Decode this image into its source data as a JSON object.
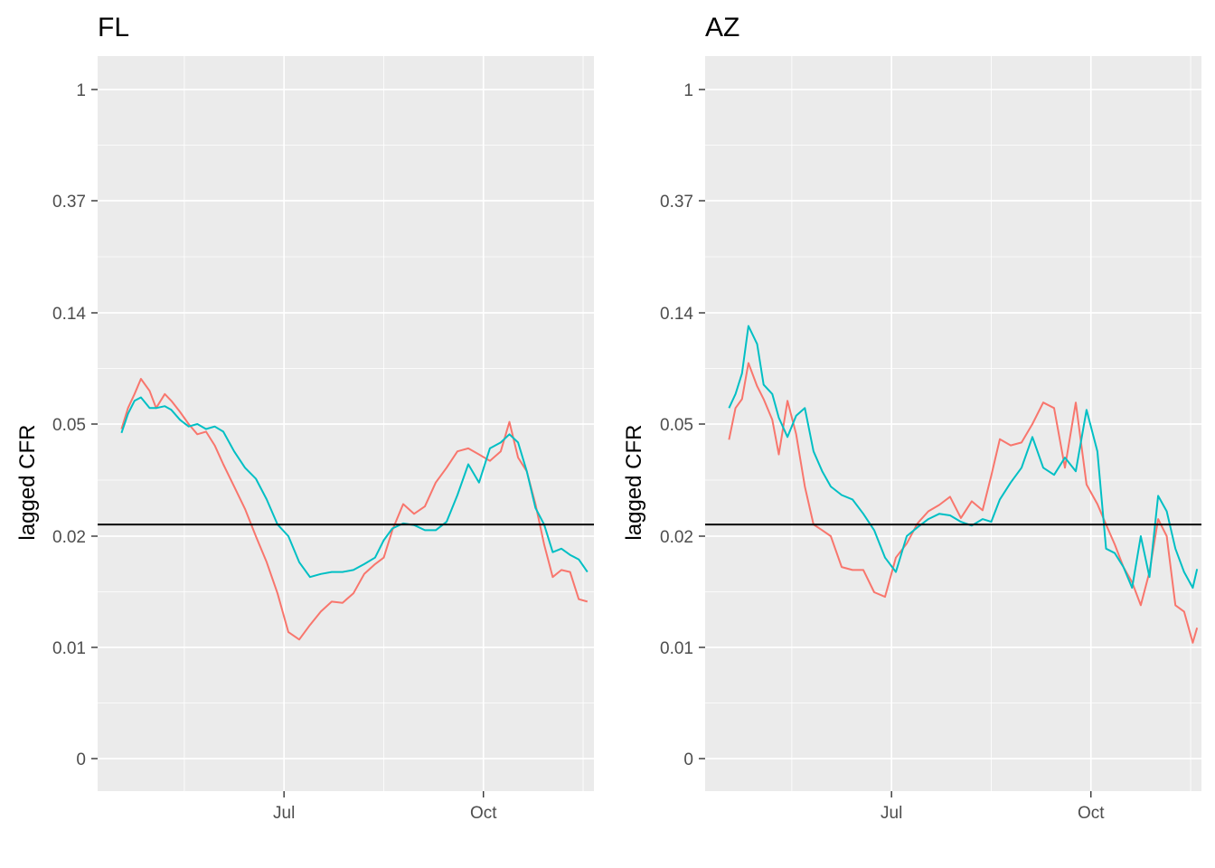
{
  "chart_data": [
    {
      "type": "line",
      "title": "FL",
      "xlabel": "",
      "ylabel": "lagged CFR",
      "y_scale": "log",
      "y_ticks": [
        {
          "value": 0,
          "label": "0"
        },
        {
          "value": 0.01,
          "label": "0.01"
        },
        {
          "value": 0.02,
          "label": "0.02"
        },
        {
          "value": 0.05,
          "label": "0.05"
        },
        {
          "value": 0.14,
          "label": "0.14"
        },
        {
          "value": 0.37,
          "label": "0.37"
        },
        {
          "value": 1,
          "label": "1"
        }
      ],
      "x_ticks": [
        {
          "value": "2020-07-01",
          "label": "Jul"
        },
        {
          "value": "2020-10-01",
          "label": "Oct"
        }
      ],
      "xlim": [
        "2020-04-06",
        "2020-11-21"
      ],
      "hline": 0.022,
      "grid": true,
      "legend": "none",
      "series": [
        {
          "color": "#F8766D",
          "points": [
            [
              "2020-04-17",
              0.048
            ],
            [
              "2020-04-20",
              0.058
            ],
            [
              "2020-04-23",
              0.066
            ],
            [
              "2020-04-26",
              0.076
            ],
            [
              "2020-04-30",
              0.068
            ],
            [
              "2020-05-03",
              0.058
            ],
            [
              "2020-05-07",
              0.066
            ],
            [
              "2020-05-10",
              0.062
            ],
            [
              "2020-05-14",
              0.056
            ],
            [
              "2020-05-18",
              0.05
            ],
            [
              "2020-05-22",
              0.046
            ],
            [
              "2020-05-26",
              0.047
            ],
            [
              "2020-05-30",
              0.042
            ],
            [
              "2020-06-03",
              0.036
            ],
            [
              "2020-06-08",
              0.03
            ],
            [
              "2020-06-13",
              0.025
            ],
            [
              "2020-06-18",
              0.02
            ],
            [
              "2020-06-23",
              0.017
            ],
            [
              "2020-06-28",
              0.014
            ],
            [
              "2020-07-03",
              0.011
            ],
            [
              "2020-07-08",
              0.0105
            ],
            [
              "2020-07-13",
              0.0115
            ],
            [
              "2020-07-18",
              0.0125
            ],
            [
              "2020-07-23",
              0.0133
            ],
            [
              "2020-07-28",
              0.0132
            ],
            [
              "2020-08-02",
              0.014
            ],
            [
              "2020-08-07",
              0.0158
            ],
            [
              "2020-08-12",
              0.0168
            ],
            [
              "2020-08-16",
              0.0175
            ],
            [
              "2020-08-20",
              0.021
            ],
            [
              "2020-08-25",
              0.026
            ],
            [
              "2020-08-30",
              0.024
            ],
            [
              "2020-09-04",
              0.0255
            ],
            [
              "2020-09-09",
              0.031
            ],
            [
              "2020-09-14",
              0.035
            ],
            [
              "2020-09-19",
              0.04
            ],
            [
              "2020-09-24",
              0.041
            ],
            [
              "2020-09-29",
              0.039
            ],
            [
              "2020-10-04",
              0.037
            ],
            [
              "2020-10-09",
              0.04
            ],
            [
              "2020-10-13",
              0.051
            ],
            [
              "2020-10-17",
              0.038
            ],
            [
              "2020-10-21",
              0.034
            ],
            [
              "2020-10-25",
              0.026
            ],
            [
              "2020-10-29",
              0.019
            ],
            [
              "2020-11-02",
              0.0155
            ],
            [
              "2020-11-06",
              0.0162
            ],
            [
              "2020-11-10",
              0.016
            ],
            [
              "2020-11-14",
              0.0135
            ],
            [
              "2020-11-18",
              0.0133
            ]
          ]
        },
        {
          "color": "#00BFC4",
          "points": [
            [
              "2020-04-17",
              0.0465
            ],
            [
              "2020-04-20",
              0.055
            ],
            [
              "2020-04-23",
              0.062
            ],
            [
              "2020-04-26",
              0.064
            ],
            [
              "2020-04-30",
              0.058
            ],
            [
              "2020-05-03",
              0.058
            ],
            [
              "2020-05-07",
              0.059
            ],
            [
              "2020-05-10",
              0.057
            ],
            [
              "2020-05-14",
              0.052
            ],
            [
              "2020-05-18",
              0.049
            ],
            [
              "2020-05-22",
              0.05
            ],
            [
              "2020-05-26",
              0.048
            ],
            [
              "2020-05-30",
              0.049
            ],
            [
              "2020-06-03",
              0.047
            ],
            [
              "2020-06-08",
              0.04
            ],
            [
              "2020-06-13",
              0.035
            ],
            [
              "2020-06-18",
              0.032
            ],
            [
              "2020-06-23",
              0.027
            ],
            [
              "2020-06-28",
              0.022
            ],
            [
              "2020-07-03",
              0.02
            ],
            [
              "2020-07-08",
              0.017
            ],
            [
              "2020-07-13",
              0.0155
            ],
            [
              "2020-07-18",
              0.0158
            ],
            [
              "2020-07-23",
              0.016
            ],
            [
              "2020-07-28",
              0.016
            ],
            [
              "2020-08-02",
              0.0162
            ],
            [
              "2020-08-07",
              0.0168
            ],
            [
              "2020-08-12",
              0.0175
            ],
            [
              "2020-08-16",
              0.0195
            ],
            [
              "2020-08-20",
              0.0213
            ],
            [
              "2020-08-25",
              0.0222
            ],
            [
              "2020-08-30",
              0.0219
            ],
            [
              "2020-09-04",
              0.021
            ],
            [
              "2020-09-09",
              0.021
            ],
            [
              "2020-09-14",
              0.0225
            ],
            [
              "2020-09-19",
              0.028
            ],
            [
              "2020-09-24",
              0.036
            ],
            [
              "2020-09-29",
              0.031
            ],
            [
              "2020-10-04",
              0.041
            ],
            [
              "2020-10-09",
              0.043
            ],
            [
              "2020-10-13",
              0.046
            ],
            [
              "2020-10-17",
              0.043
            ],
            [
              "2020-10-21",
              0.034
            ],
            [
              "2020-10-25",
              0.0252
            ],
            [
              "2020-10-29",
              0.022
            ],
            [
              "2020-11-02",
              0.0181
            ],
            [
              "2020-11-06",
              0.0185
            ],
            [
              "2020-11-10",
              0.0178
            ],
            [
              "2020-11-14",
              0.0173
            ],
            [
              "2020-11-18",
              0.016
            ]
          ]
        }
      ]
    },
    {
      "type": "line",
      "title": "AZ",
      "xlabel": "",
      "ylabel": "lagged CFR",
      "y_scale": "log",
      "y_ticks": [
        {
          "value": 0,
          "label": "0"
        },
        {
          "value": 0.01,
          "label": "0.01"
        },
        {
          "value": 0.02,
          "label": "0.02"
        },
        {
          "value": 0.05,
          "label": "0.05"
        },
        {
          "value": 0.14,
          "label": "0.14"
        },
        {
          "value": 0.37,
          "label": "0.37"
        },
        {
          "value": 1,
          "label": "1"
        }
      ],
      "x_ticks": [
        {
          "value": "2020-07-01",
          "label": "Jul"
        },
        {
          "value": "2020-10-01",
          "label": "Oct"
        }
      ],
      "xlim": [
        "2020-04-06",
        "2020-11-21"
      ],
      "hline": 0.022,
      "grid": true,
      "legend": "none",
      "series": [
        {
          "color": "#F8766D",
          "points": [
            [
              "2020-04-17",
              0.044
            ],
            [
              "2020-04-20",
              0.058
            ],
            [
              "2020-04-23",
              0.063
            ],
            [
              "2020-04-26",
              0.088
            ],
            [
              "2020-04-30",
              0.071
            ],
            [
              "2020-05-03",
              0.063
            ],
            [
              "2020-05-07",
              0.052
            ],
            [
              "2020-05-10",
              0.039
            ],
            [
              "2020-05-14",
              0.062
            ],
            [
              "2020-05-18",
              0.046
            ],
            [
              "2020-05-22",
              0.03
            ],
            [
              "2020-05-26",
              0.022
            ],
            [
              "2020-05-30",
              0.021
            ],
            [
              "2020-06-03",
              0.02
            ],
            [
              "2020-06-08",
              0.0165
            ],
            [
              "2020-06-13",
              0.0162
            ],
            [
              "2020-06-18",
              0.0162
            ],
            [
              "2020-06-23",
              0.0141
            ],
            [
              "2020-06-28",
              0.0137
            ],
            [
              "2020-07-03",
              0.0175
            ],
            [
              "2020-07-08",
              0.0191
            ],
            [
              "2020-07-13",
              0.0222
            ],
            [
              "2020-07-18",
              0.0245
            ],
            [
              "2020-07-23",
              0.0258
            ],
            [
              "2020-07-28",
              0.0276
            ],
            [
              "2020-08-02",
              0.0232
            ],
            [
              "2020-08-07",
              0.0266
            ],
            [
              "2020-08-12",
              0.0247
            ],
            [
              "2020-08-16",
              0.0328
            ],
            [
              "2020-08-20",
              0.0442
            ],
            [
              "2020-08-25",
              0.042
            ],
            [
              "2020-08-30",
              0.043
            ],
            [
              "2020-09-04",
              0.05
            ],
            [
              "2020-09-09",
              0.061
            ],
            [
              "2020-09-14",
              0.058
            ],
            [
              "2020-09-19",
              0.035
            ],
            [
              "2020-09-24",
              0.061
            ],
            [
              "2020-09-29",
              0.0305
            ],
            [
              "2020-10-04",
              0.026
            ],
            [
              "2020-10-08",
              0.022
            ],
            [
              "2020-10-12",
              0.019
            ],
            [
              "2020-10-16",
              0.0165
            ],
            [
              "2020-10-20",
              0.015
            ],
            [
              "2020-10-24",
              0.013
            ],
            [
              "2020-10-28",
              0.016
            ],
            [
              "2020-11-01",
              0.023
            ],
            [
              "2020-11-05",
              0.02
            ],
            [
              "2020-11-09",
              0.013
            ],
            [
              "2020-11-13",
              0.0125
            ],
            [
              "2020-11-17",
              0.0103
            ],
            [
              "2020-11-19",
              0.0113
            ]
          ]
        },
        {
          "color": "#00BFC4",
          "points": [
            [
              "2020-04-17",
              0.058
            ],
            [
              "2020-04-20",
              0.066
            ],
            [
              "2020-04-23",
              0.08
            ],
            [
              "2020-04-26",
              0.124
            ],
            [
              "2020-04-30",
              0.105
            ],
            [
              "2020-05-03",
              0.072
            ],
            [
              "2020-05-07",
              0.066
            ],
            [
              "2020-05-10",
              0.053
            ],
            [
              "2020-05-14",
              0.045
            ],
            [
              "2020-05-18",
              0.054
            ],
            [
              "2020-05-22",
              0.058
            ],
            [
              "2020-05-26",
              0.04
            ],
            [
              "2020-05-30",
              0.034
            ],
            [
              "2020-06-03",
              0.03
            ],
            [
              "2020-06-08",
              0.028
            ],
            [
              "2020-06-13",
              0.027
            ],
            [
              "2020-06-18",
              0.024
            ],
            [
              "2020-06-23",
              0.021
            ],
            [
              "2020-06-28",
              0.0175
            ],
            [
              "2020-07-03",
              0.016
            ],
            [
              "2020-07-08",
              0.02
            ],
            [
              "2020-07-13",
              0.0215
            ],
            [
              "2020-07-18",
              0.023
            ],
            [
              "2020-07-23",
              0.024
            ],
            [
              "2020-07-28",
              0.0237
            ],
            [
              "2020-08-02",
              0.0225
            ],
            [
              "2020-08-07",
              0.0218
            ],
            [
              "2020-08-12",
              0.023
            ],
            [
              "2020-08-16",
              0.0225
            ],
            [
              "2020-08-20",
              0.027
            ],
            [
              "2020-08-25",
              0.031
            ],
            [
              "2020-08-30",
              0.035
            ],
            [
              "2020-09-04",
              0.045
            ],
            [
              "2020-09-09",
              0.035
            ],
            [
              "2020-09-14",
              0.033
            ],
            [
              "2020-09-19",
              0.038
            ],
            [
              "2020-09-24",
              0.034
            ],
            [
              "2020-09-29",
              0.057
            ],
            [
              "2020-10-04",
              0.04
            ],
            [
              "2020-10-08",
              0.0185
            ],
            [
              "2020-10-12",
              0.018
            ],
            [
              "2020-10-16",
              0.0165
            ],
            [
              "2020-10-20",
              0.0145
            ],
            [
              "2020-10-24",
              0.02
            ],
            [
              "2020-10-28",
              0.0155
            ],
            [
              "2020-11-01",
              0.0278
            ],
            [
              "2020-11-05",
              0.0245
            ],
            [
              "2020-11-09",
              0.0185
            ],
            [
              "2020-11-13",
              0.016
            ],
            [
              "2020-11-17",
              0.0145
            ],
            [
              "2020-11-19",
              0.0163
            ]
          ]
        }
      ]
    }
  ]
}
